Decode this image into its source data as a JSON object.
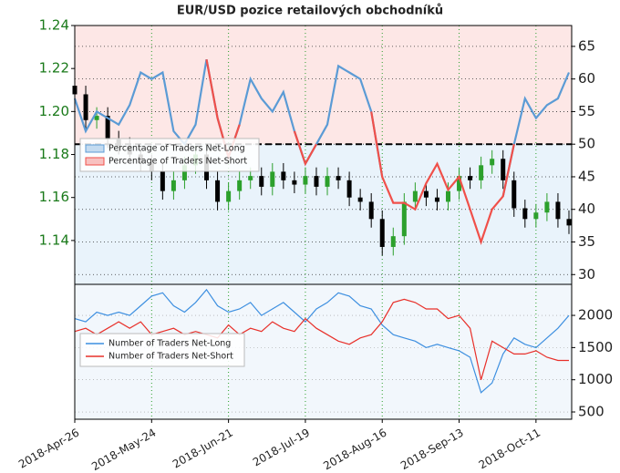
{
  "chart_data": [
    {
      "type": "candlestick",
      "title": "EUR/USD pozice retailových obchodníků",
      "x": [
        "2018-04-26",
        "2018-04-30",
        "2018-05-04",
        "2018-05-08",
        "2018-05-12",
        "2018-05-16",
        "2018-05-20",
        "2018-05-24",
        "2018-05-28",
        "2018-06-01",
        "2018-06-05",
        "2018-06-09",
        "2018-06-13",
        "2018-06-17",
        "2018-06-21",
        "2018-06-25",
        "2018-06-29",
        "2018-07-03",
        "2018-07-07",
        "2018-07-11",
        "2018-07-15",
        "2018-07-19",
        "2018-07-23",
        "2018-07-27",
        "2018-07-31",
        "2018-08-04",
        "2018-08-08",
        "2018-08-12",
        "2018-08-16",
        "2018-08-20",
        "2018-08-24",
        "2018-08-28",
        "2018-09-01",
        "2018-09-05",
        "2018-09-09",
        "2018-09-13",
        "2018-09-17",
        "2018-09-21",
        "2018-09-25",
        "2018-09-29",
        "2018-10-03",
        "2018-10-07",
        "2018-10-11",
        "2018-10-15",
        "2018-10-19",
        "2018-10-23"
      ],
      "open": [
        1.212,
        1.208,
        1.196,
        1.198,
        1.187,
        1.184,
        1.18,
        1.176,
        1.172,
        1.163,
        1.168,
        1.175,
        1.18,
        1.168,
        1.158,
        1.163,
        1.168,
        1.17,
        1.165,
        1.172,
        1.168,
        1.166,
        1.17,
        1.165,
        1.17,
        1.168,
        1.16,
        1.158,
        1.15,
        1.137,
        1.142,
        1.158,
        1.163,
        1.16,
        1.158,
        1.163,
        1.17,
        1.168,
        1.175,
        1.178,
        1.168,
        1.155,
        1.15,
        1.153,
        1.158,
        1.15
      ],
      "high": [
        1.216,
        1.212,
        1.202,
        1.202,
        1.191,
        1.188,
        1.184,
        1.18,
        1.176,
        1.172,
        1.179,
        1.184,
        1.184,
        1.172,
        1.167,
        1.172,
        1.174,
        1.174,
        1.176,
        1.176,
        1.172,
        1.174,
        1.174,
        1.174,
        1.174,
        1.172,
        1.164,
        1.162,
        1.154,
        1.146,
        1.162,
        1.167,
        1.167,
        1.164,
        1.167,
        1.174,
        1.174,
        1.179,
        1.182,
        1.182,
        1.172,
        1.159,
        1.157,
        1.162,
        1.162,
        1.154
      ],
      "low": [
        1.204,
        1.192,
        1.192,
        1.183,
        1.18,
        1.176,
        1.172,
        1.168,
        1.159,
        1.159,
        1.164,
        1.171,
        1.164,
        1.154,
        1.154,
        1.159,
        1.164,
        1.161,
        1.161,
        1.164,
        1.162,
        1.162,
        1.161,
        1.161,
        1.164,
        1.156,
        1.154,
        1.146,
        1.133,
        1.133,
        1.138,
        1.154,
        1.156,
        1.154,
        1.154,
        1.159,
        1.164,
        1.164,
        1.171,
        1.164,
        1.151,
        1.146,
        1.146,
        1.149,
        1.146,
        1.143
      ],
      "close": [
        1.208,
        1.196,
        1.198,
        1.187,
        1.184,
        1.18,
        1.176,
        1.172,
        1.163,
        1.168,
        1.175,
        1.18,
        1.168,
        1.158,
        1.163,
        1.168,
        1.17,
        1.165,
        1.172,
        1.168,
        1.166,
        1.17,
        1.165,
        1.17,
        1.168,
        1.16,
        1.158,
        1.15,
        1.137,
        1.142,
        1.158,
        1.163,
        1.16,
        1.158,
        1.163,
        1.17,
        1.168,
        1.175,
        1.178,
        1.168,
        1.155,
        1.15,
        1.153,
        1.158,
        1.15,
        1.147
      ],
      "up_color": "#2ca02c",
      "down_color": "#000000",
      "series": [
        {
          "name": "Percentage of Traders Net-Long",
          "color": "#5b9bd5",
          "axis": "y2",
          "values": [
            57,
            52,
            55,
            54,
            53,
            56,
            61,
            60,
            61,
            52,
            50,
            53,
            63,
            54,
            48,
            53,
            60,
            57,
            55,
            58,
            52,
            47,
            50,
            53,
            62,
            61,
            60,
            55,
            45,
            null,
            null,
            null,
            null,
            null,
            null,
            null,
            null,
            null,
            null,
            42,
            50,
            57,
            54,
            56,
            57,
            61
          ]
        },
        {
          "name": "Percentage of Traders Net-Short",
          "color": "#f0504a",
          "axis": "y2",
          "values": [
            null,
            null,
            null,
            null,
            null,
            null,
            null,
            null,
            null,
            null,
            null,
            null,
            63,
            54,
            48,
            53,
            null,
            null,
            null,
            null,
            52,
            47,
            50,
            null,
            null,
            null,
            null,
            55,
            45,
            41,
            41,
            40,
            44,
            47,
            43,
            45,
            40,
            35,
            40,
            42,
            50,
            null,
            null,
            null,
            null,
            null
          ]
        }
      ],
      "reference_line": 50,
      "xlim": [
        "2018-04-26",
        "2018-10-24"
      ],
      "ylim": [
        1.1196,
        1.24
      ],
      "yticks": [
        1.14,
        1.16,
        1.18,
        {
          "value": 1.2,
          "label": "1.20"
        },
        1.22,
        1.24
      ],
      "y2lim": [
        28.5,
        68.2
      ],
      "y2ticks": [
        30,
        35,
        40,
        45,
        50,
        55,
        60,
        65
      ],
      "grid": true,
      "legend": "center left"
    },
    {
      "type": "line",
      "x": [
        "2018-04-26",
        "2018-04-30",
        "2018-05-04",
        "2018-05-08",
        "2018-05-12",
        "2018-05-16",
        "2018-05-20",
        "2018-05-24",
        "2018-05-28",
        "2018-06-01",
        "2018-06-05",
        "2018-06-09",
        "2018-06-13",
        "2018-06-17",
        "2018-06-21",
        "2018-06-25",
        "2018-06-29",
        "2018-07-03",
        "2018-07-07",
        "2018-07-11",
        "2018-07-15",
        "2018-07-19",
        "2018-07-23",
        "2018-07-27",
        "2018-07-31",
        "2018-08-04",
        "2018-08-08",
        "2018-08-12",
        "2018-08-16",
        "2018-08-20",
        "2018-08-24",
        "2018-08-28",
        "2018-09-01",
        "2018-09-05",
        "2018-09-09",
        "2018-09-13",
        "2018-09-17",
        "2018-09-21",
        "2018-09-25",
        "2018-09-29",
        "2018-10-03",
        "2018-10-07",
        "2018-10-11",
        "2018-10-15",
        "2018-10-19",
        "2018-10-23"
      ],
      "series": [
        {
          "name": "Number of Traders Net-Long",
          "color": "#3d8fe0",
          "values": [
            1950,
            1900,
            2050,
            2000,
            2050,
            2000,
            2150,
            2300,
            2350,
            2150,
            2050,
            2200,
            2400,
            2150,
            2050,
            2100,
            2200,
            2000,
            2100,
            2200,
            2050,
            1900,
            2100,
            2200,
            2350,
            2300,
            2150,
            2100,
            1850,
            1700,
            1650,
            1600,
            1500,
            1550,
            1500,
            1450,
            1350,
            800,
            950,
            1400,
            1650,
            1550,
            1500,
            1650,
            1800,
            2000
          ]
        },
        {
          "name": "Number of Traders Net-Short",
          "color": "#e8302a",
          "values": [
            1750,
            1800,
            1700,
            1800,
            1900,
            1800,
            1900,
            1700,
            1750,
            1800,
            1700,
            1750,
            1700,
            1650,
            1850,
            1700,
            1800,
            1750,
            1900,
            1800,
            1750,
            1950,
            1800,
            1700,
            1600,
            1550,
            1650,
            1700,
            1900,
            2200,
            2250,
            2200,
            2100,
            2100,
            1950,
            2000,
            1800,
            1000,
            1600,
            1500,
            1400,
            1400,
            1450,
            1350,
            1300,
            1300
          ]
        }
      ],
      "xlim": [
        "2018-04-26",
        "2018-10-24"
      ],
      "xticks": [
        {
          "value": "2018-04-26",
          "label": "2018-Apr-26"
        },
        {
          "value": "2018-05-24",
          "label": "2018-May-24"
        },
        {
          "value": "2018-06-21",
          "label": "2018-Jun-21"
        },
        {
          "value": "2018-07-19",
          "label": "2018-Jul-19"
        },
        {
          "value": "2018-08-16",
          "label": "2018-Aug-16"
        },
        {
          "value": "2018-09-13",
          "label": "2018-Sep-13"
        },
        {
          "value": "2018-10-11",
          "label": "2018-Oct-11"
        }
      ],
      "ylim": [
        387,
        2482
      ],
      "yticks": [
        500,
        1000,
        1500,
        2000
      ],
      "grid": true,
      "legend": "center left"
    }
  ]
}
